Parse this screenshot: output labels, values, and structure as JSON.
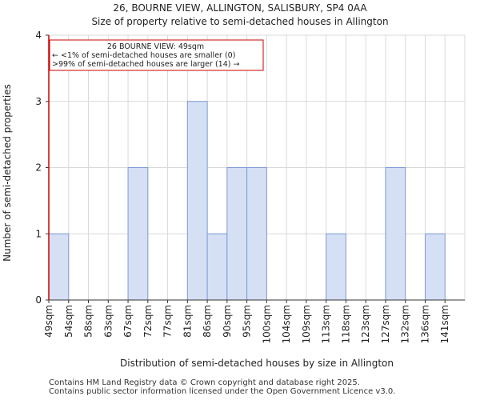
{
  "chart_data": {
    "type": "bar",
    "title": "26, BOURNE VIEW, ALLINGTON, SALISBURY, SP4 0AA",
    "subtitle": "Size of property relative to semi-detached houses in Allington",
    "xlabel": "Distribution of semi-detached houses by size in Allington",
    "ylabel": "Number of semi-detached properties",
    "categories": [
      "49sqm",
      "54sqm",
      "58sqm",
      "63sqm",
      "67sqm",
      "72sqm",
      "77sqm",
      "81sqm",
      "86sqm",
      "90sqm",
      "95sqm",
      "100sqm",
      "104sqm",
      "109sqm",
      "113sqm",
      "118sqm",
      "123sqm",
      "127sqm",
      "132sqm",
      "136sqm",
      "141sqm"
    ],
    "values": [
      1,
      0,
      0,
      0,
      2,
      0,
      0,
      3,
      1,
      2,
      2,
      0,
      0,
      0,
      1,
      0,
      0,
      2,
      0,
      1,
      0
    ],
    "ylim": [
      0,
      4
    ],
    "yticks": [
      0,
      1,
      2,
      3,
      4
    ],
    "grid": true,
    "bar_color": "#d6e0f5",
    "bar_edge_color": "#7f9ad6",
    "marker": {
      "value_sqm": 49,
      "color": "#cc0000",
      "annotation": [
        "26 BOURNE VIEW: 49sqm",
        "← <1% of semi-detached houses are smaller (0)",
        ">99% of semi-detached houses are larger (14) →"
      ]
    }
  },
  "footer": {
    "line1": "Contains HM Land Registry data © Crown copyright and database right 2025.",
    "line2": "Contains public sector information licensed under the Open Government Licence v3.0."
  }
}
